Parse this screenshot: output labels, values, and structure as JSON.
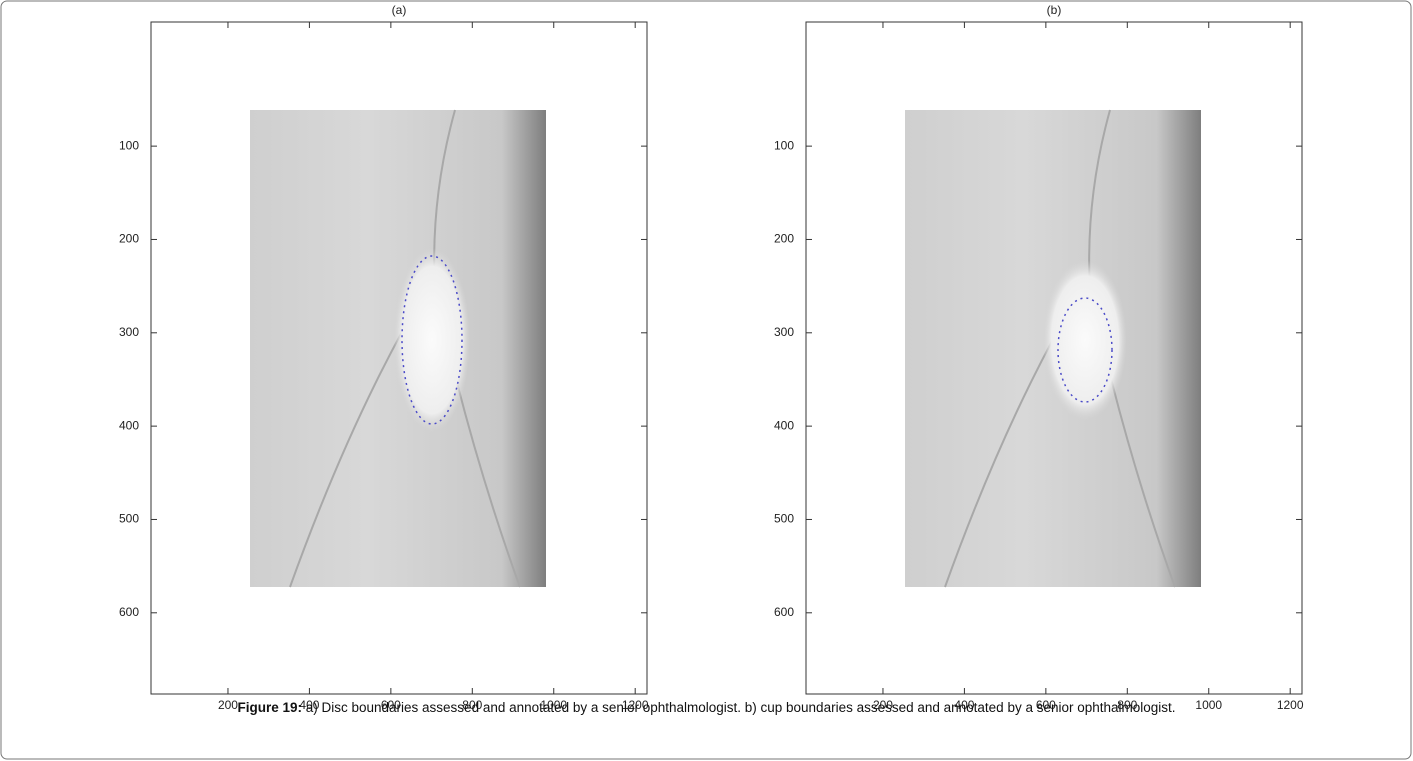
{
  "panels": [
    {
      "title": "(a)",
      "xlim": [
        11,
        1229
      ],
      "ylim": [
        -33,
        687
      ],
      "y_inverted": true,
      "xticks": [
        200,
        400,
        600,
        800,
        1000,
        1200
      ],
      "yticks": [
        100,
        200,
        300,
        400,
        500,
        600
      ]
    },
    {
      "title": "(b)",
      "xlim": [
        11,
        1229
      ],
      "ylim": [
        -33,
        687
      ],
      "y_inverted": true,
      "xticks": [
        200,
        400,
        600,
        800,
        1000,
        1200
      ],
      "yticks": [
        100,
        200,
        300,
        400,
        500,
        600
      ]
    }
  ],
  "caption": {
    "label": "Figure 19:",
    "text": "a) Disc boundaries assessed and annotated by a senior ophthalmologist. b) cup boundaries assessed and annotated by a senior ophthalmologist."
  }
}
